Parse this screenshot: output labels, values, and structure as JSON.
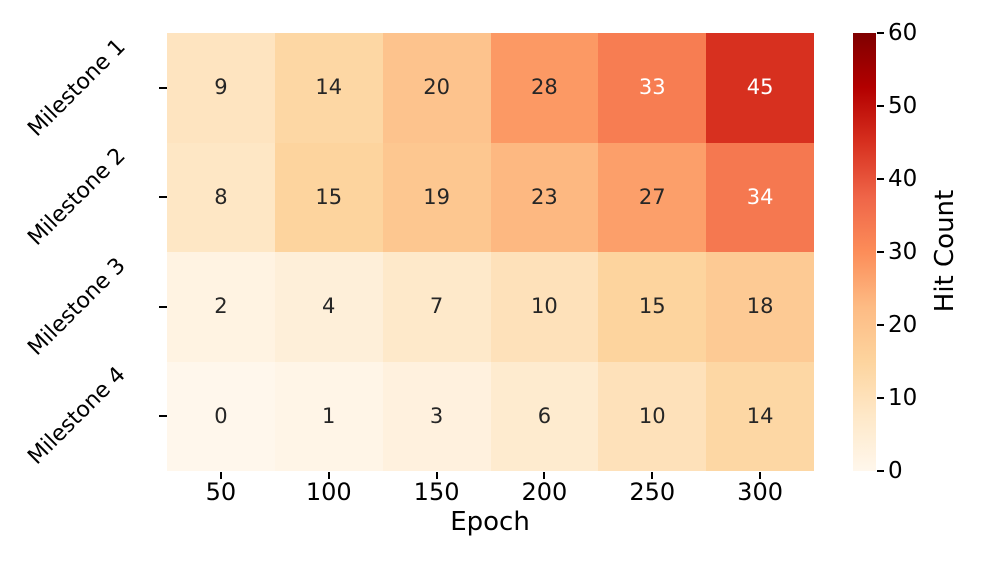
{
  "chart_data": {
    "type": "heatmap",
    "title": "",
    "xlabel": "Epoch",
    "ylabel": "",
    "colorbar_label": "Hit Count",
    "x_categories": [
      "50",
      "100",
      "150",
      "200",
      "250",
      "300"
    ],
    "y_categories": [
      "Milestone 1",
      "Milestone 2",
      "Milestone 3",
      "Milestone 4"
    ],
    "values": [
      [
        9,
        14,
        20,
        28,
        33,
        45
      ],
      [
        8,
        15,
        19,
        23,
        27,
        34
      ],
      [
        2,
        4,
        7,
        10,
        15,
        18
      ],
      [
        0,
        1,
        3,
        6,
        10,
        14
      ]
    ],
    "vmin": 0,
    "vmax": 60,
    "colorbar_ticks": [
      0,
      10,
      20,
      30,
      40,
      50,
      60
    ],
    "colormap": "OrRd",
    "grid": false,
    "legend_position": "right-colorbar",
    "annotated": true
  },
  "colors": {
    "colormap_stops": [
      "#fff7ec",
      "#fee8c8",
      "#fdd49e",
      "#fdbb84",
      "#fc8d59",
      "#ef6548",
      "#d7301f",
      "#b30000",
      "#7f0000"
    ],
    "annotation_dark": "#262626",
    "annotation_light": "#ffffff",
    "axis_tick": "#000000",
    "background": "#ffffff"
  }
}
